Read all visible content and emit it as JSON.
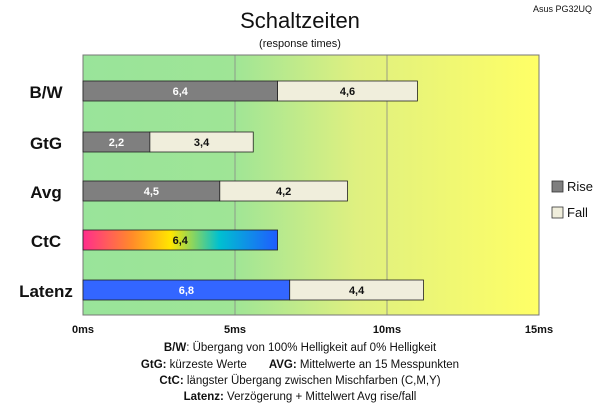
{
  "brand": "Asus PG32UQ",
  "chart_data": {
    "type": "bar",
    "title": "Schaltzeiten",
    "subtitle": "(response times)",
    "orientation": "horizontal",
    "stacked": true,
    "xlim": [
      0,
      15
    ],
    "x_ticks": [
      {
        "value": 0,
        "label": "0ms"
      },
      {
        "value": 5,
        "label": "5ms"
      },
      {
        "value": 10,
        "label": "10ms"
      },
      {
        "value": 15,
        "label": "15ms"
      }
    ],
    "grid": true,
    "legend_position": "right",
    "categories": [
      "B/W",
      "GtG",
      "Avg",
      "CtC",
      "Latenz"
    ],
    "series": [
      {
        "name": "Rise",
        "values": [
          6.4,
          2.2,
          4.5,
          null,
          null
        ],
        "labels": [
          "6,4",
          "2,2",
          "4,5",
          "",
          ""
        ],
        "color": "#7f7f7f"
      },
      {
        "name": "Fall",
        "values": [
          4.6,
          3.4,
          4.2,
          null,
          4.4
        ],
        "labels": [
          "4,6",
          "3,4",
          "4,2",
          "",
          "4,4"
        ],
        "color": "#f0eedc"
      }
    ],
    "ctc": {
      "value": 6.4,
      "label": "6,4",
      "gradient": [
        "#ff2d8c",
        "#ffe600",
        "#00c0d0",
        "#1f5cff"
      ]
    },
    "latency": {
      "value": 6.8,
      "label": "6,8",
      "color": "#3366ff"
    },
    "background_gradient": [
      "#99e49a",
      "#ffff66"
    ]
  },
  "notes": {
    "bw_key": "B/W",
    "bw_text": ":  Übergang von 100% Helligkeit auf 0% Helligkeit",
    "gtg_key": "GtG:",
    "gtg_text": " kürzeste  Werte",
    "avg_key": "AVG:",
    "avg_text": " Mittelwerte  an 15 Messpunkten",
    "ctc_key": "CtC:",
    "ctc_text": " längster Übergang  zwischen Mischfarben (C,M,Y)",
    "lat_key": "Latenz:",
    "lat_text": " Verzögerung  + Mittelwert Avg rise/fall"
  }
}
